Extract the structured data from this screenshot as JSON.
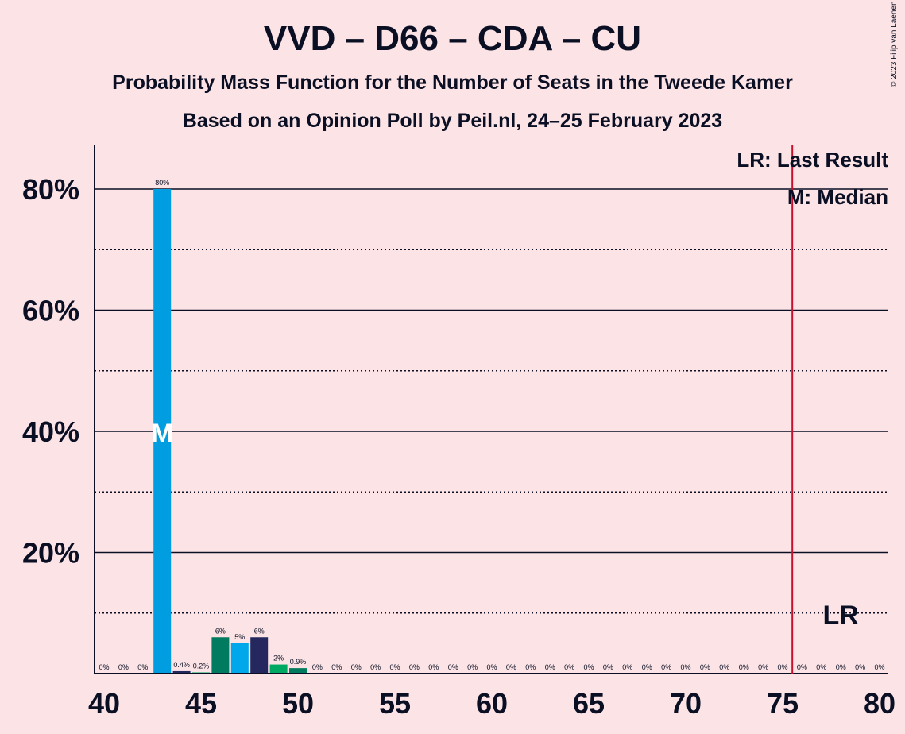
{
  "chart_data": {
    "type": "bar",
    "title": "VVD – D66 – CDA – CU",
    "subtitle": "Probability Mass Function for the Number of Seats in the Tweede Kamer",
    "source": "Based on an Opinion Poll by Peil.nl, 24–25 February 2023",
    "copyright": "© 2023 Filip van Laenen",
    "xlim": [
      40,
      80
    ],
    "ylim": [
      0,
      87
    ],
    "x_ticks": [
      40,
      45,
      50,
      55,
      60,
      65,
      70,
      75,
      80
    ],
    "y_ticks": [
      20,
      40,
      60,
      80
    ],
    "y_tick_labels": [
      "20%",
      "40%",
      "60%",
      "80%"
    ],
    "minor_y_gridlines": [
      10,
      30,
      50,
      70
    ],
    "legend": [
      "LR: Last Result",
      "M: Median"
    ],
    "median_marker": "M",
    "last_result_marker": "LR",
    "last_result_line_x": 75.5,
    "median_seat": 43,
    "lr_label_x": 78,
    "lr_label_y": 10,
    "colors": {
      "background": "#fce4e6",
      "vvd": "#009ee0",
      "d66": "#00a861",
      "cda": "#007b5f",
      "cu": "#00a7eb",
      "sgp": "#24285f",
      "lr_line": "#c8102e",
      "text": "#0a0f24"
    },
    "bars": [
      {
        "seat": 40,
        "value": 0,
        "label": "0%",
        "color": "#009ee0"
      },
      {
        "seat": 41,
        "value": 0,
        "label": "0%",
        "color": "#009ee0"
      },
      {
        "seat": 42,
        "value": 0,
        "label": "0%",
        "color": "#009ee0"
      },
      {
        "seat": 43,
        "value": 80,
        "label": "80%",
        "color": "#009ee0"
      },
      {
        "seat": 44,
        "value": 0.4,
        "label": "0.4%",
        "color": "#24285f"
      },
      {
        "seat": 45,
        "value": 0.2,
        "label": "0.2%",
        "color": "#00a861"
      },
      {
        "seat": 46,
        "value": 6,
        "label": "6%",
        "color": "#007b5f"
      },
      {
        "seat": 47,
        "value": 5,
        "label": "5%",
        "color": "#00a7eb"
      },
      {
        "seat": 48,
        "value": 6,
        "label": "6%",
        "color": "#24285f"
      },
      {
        "seat": 49,
        "value": 1.5,
        "label": "2%",
        "color": "#00a861"
      },
      {
        "seat": 50,
        "value": 0.9,
        "label": "0.9%",
        "color": "#007b5f"
      },
      {
        "seat": 51,
        "value": 0,
        "label": "0%",
        "color": "#009ee0"
      },
      {
        "seat": 52,
        "value": 0,
        "label": "0%",
        "color": "#009ee0"
      },
      {
        "seat": 53,
        "value": 0,
        "label": "0%",
        "color": "#009ee0"
      },
      {
        "seat": 54,
        "value": 0,
        "label": "0%",
        "color": "#009ee0"
      },
      {
        "seat": 55,
        "value": 0,
        "label": "0%",
        "color": "#009ee0"
      },
      {
        "seat": 56,
        "value": 0,
        "label": "0%",
        "color": "#009ee0"
      },
      {
        "seat": 57,
        "value": 0,
        "label": "0%",
        "color": "#009ee0"
      },
      {
        "seat": 58,
        "value": 0,
        "label": "0%",
        "color": "#009ee0"
      },
      {
        "seat": 59,
        "value": 0,
        "label": "0%",
        "color": "#009ee0"
      },
      {
        "seat": 60,
        "value": 0,
        "label": "0%",
        "color": "#009ee0"
      },
      {
        "seat": 61,
        "value": 0,
        "label": "0%",
        "color": "#009ee0"
      },
      {
        "seat": 62,
        "value": 0,
        "label": "0%",
        "color": "#009ee0"
      },
      {
        "seat": 63,
        "value": 0,
        "label": "0%",
        "color": "#009ee0"
      },
      {
        "seat": 64,
        "value": 0,
        "label": "0%",
        "color": "#009ee0"
      },
      {
        "seat": 65,
        "value": 0,
        "label": "0%",
        "color": "#009ee0"
      },
      {
        "seat": 66,
        "value": 0,
        "label": "0%",
        "color": "#009ee0"
      },
      {
        "seat": 67,
        "value": 0,
        "label": "0%",
        "color": "#009ee0"
      },
      {
        "seat": 68,
        "value": 0,
        "label": "0%",
        "color": "#009ee0"
      },
      {
        "seat": 69,
        "value": 0,
        "label": "0%",
        "color": "#009ee0"
      },
      {
        "seat": 70,
        "value": 0,
        "label": "0%",
        "color": "#009ee0"
      },
      {
        "seat": 71,
        "value": 0,
        "label": "0%",
        "color": "#009ee0"
      },
      {
        "seat": 72,
        "value": 0,
        "label": "0%",
        "color": "#009ee0"
      },
      {
        "seat": 73,
        "value": 0,
        "label": "0%",
        "color": "#009ee0"
      },
      {
        "seat": 74,
        "value": 0,
        "label": "0%",
        "color": "#009ee0"
      },
      {
        "seat": 75,
        "value": 0,
        "label": "0%",
        "color": "#009ee0"
      },
      {
        "seat": 76,
        "value": 0,
        "label": "0%",
        "color": "#009ee0"
      },
      {
        "seat": 77,
        "value": 0,
        "label": "0%",
        "color": "#009ee0"
      },
      {
        "seat": 78,
        "value": 0,
        "label": "0%",
        "color": "#009ee0"
      },
      {
        "seat": 79,
        "value": 0,
        "label": "0%",
        "color": "#009ee0"
      },
      {
        "seat": 80,
        "value": 0,
        "label": "0%",
        "color": "#009ee0"
      }
    ]
  }
}
